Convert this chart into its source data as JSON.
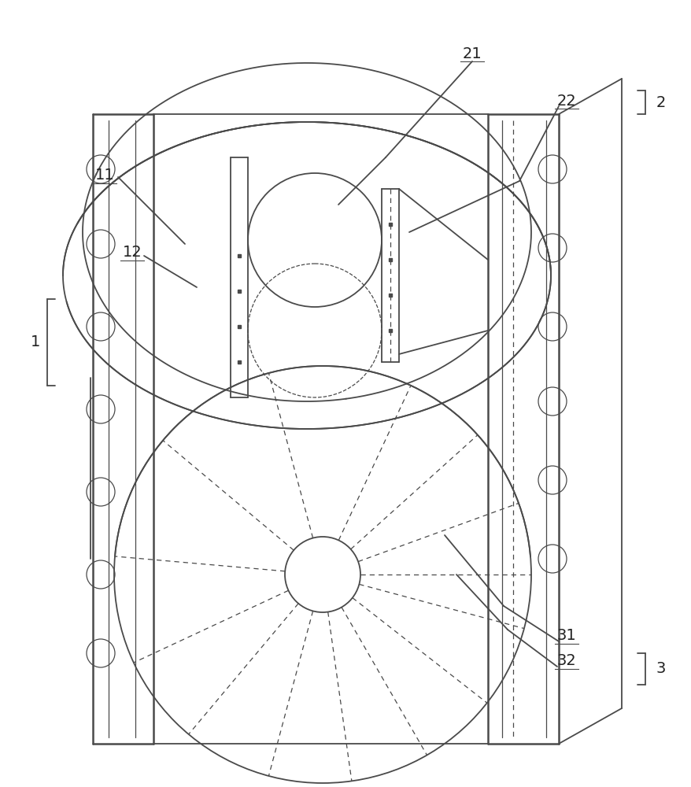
{
  "bg_color": "#ffffff",
  "line_color": "#4a4a4a",
  "label_color": "#222222",
  "fig_width": 8.79,
  "fig_height": 10.0,
  "dpi": 100
}
